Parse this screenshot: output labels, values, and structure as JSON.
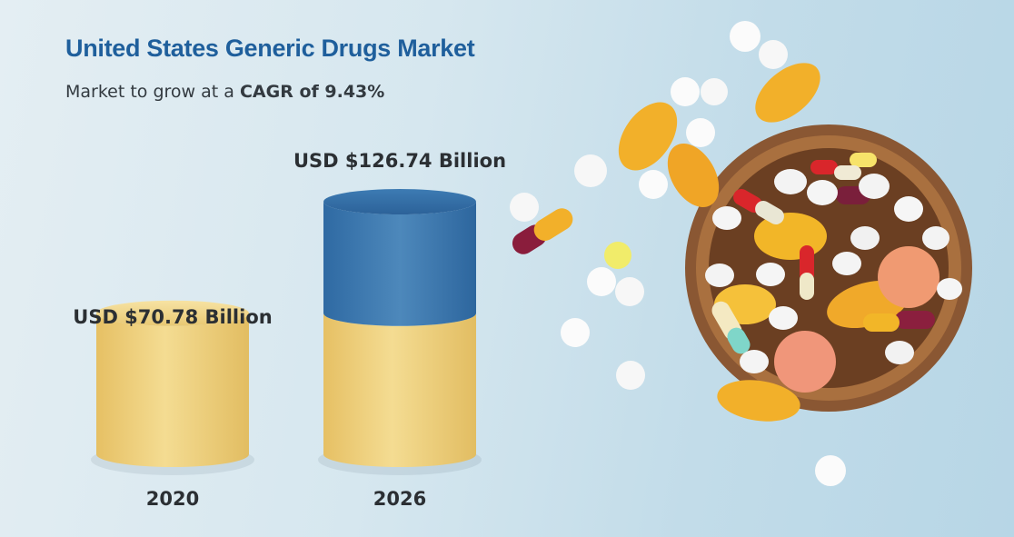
{
  "header": {
    "title": "United States Generic Drugs Market",
    "subtitle_prefix": "Market to grow at a ",
    "subtitle_emphasis": "CAGR of 9.43%"
  },
  "chart_data": {
    "type": "bar",
    "title": "United States Generic Drugs Market",
    "categories": [
      "2020",
      "2026"
    ],
    "values": [
      70.78,
      126.74
    ],
    "value_labels": [
      "USD $70.78 Billion",
      "USD $126.74 Billion"
    ],
    "unit": "USD Billion",
    "style": "3d-cylinder",
    "colors": {
      "base": "#ecc96e",
      "growth": "#3f7ab0",
      "text": "#2b2f33",
      "title": "#1f5f9c"
    },
    "grid": false,
    "legend": "none"
  },
  "image": {
    "icon": "pills-bowl-illustration"
  }
}
